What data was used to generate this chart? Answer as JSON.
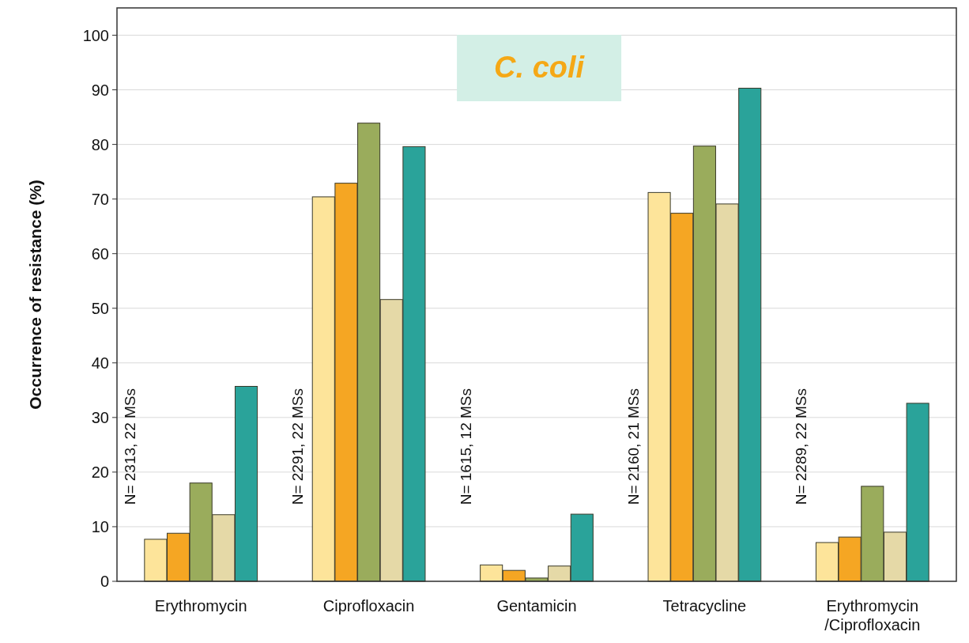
{
  "chart_data": {
    "type": "bar",
    "title": "C. coli",
    "ylabel": "Occurrence of resistance (%)",
    "categories": [
      "Erythromycin",
      "Ciprofloxacin",
      "Gentamicin",
      "Tetracycline",
      "Erythromycin\n/Ciprofloxacin"
    ],
    "series": [
      {
        "color": "#fde49a",
        "values": [
          7.7,
          70.4,
          3.0,
          71.2,
          7.1
        ]
      },
      {
        "color": "#f5a623",
        "values": [
          8.8,
          72.9,
          2.0,
          67.4,
          8.1
        ]
      },
      {
        "color": "#9aac5c",
        "values": [
          18.0,
          83.9,
          0.6,
          79.7,
          17.4
        ]
      },
      {
        "color": "#e5d9a7",
        "values": [
          12.2,
          51.6,
          2.8,
          69.1,
          9.0
        ]
      },
      {
        "color": "#2aa39a",
        "values": [
          35.7,
          79.6,
          12.3,
          90.3,
          32.6
        ]
      }
    ],
    "annotations": [
      "N= 2313, 22 MSs",
      "N= 2291, 22 MSs",
      "N= 1615, 12 MSs",
      "N= 2160, 21 MSs",
      "N= 2289, 22 MSs"
    ],
    "ylim": [
      0,
      105
    ],
    "yticks": [
      0,
      10,
      20,
      30,
      40,
      50,
      60,
      70,
      80,
      90,
      100
    ],
    "grid": "y"
  }
}
